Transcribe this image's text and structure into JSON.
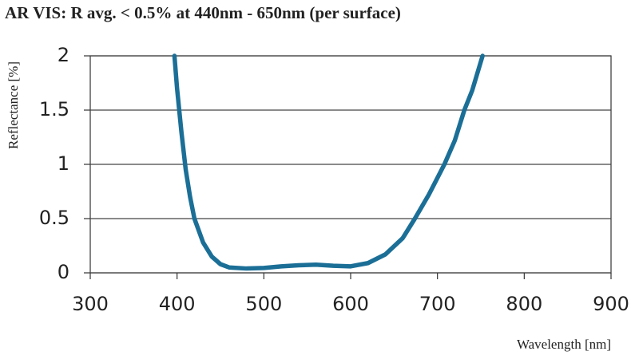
{
  "chart_data": {
    "type": "line",
    "title": "AR VIS: R avg. < 0.5% at 440nm - 650nm (per surface)",
    "x_label": "Wavelength [nm]",
    "y_label": "Reflectance [%]",
    "x": [
      397,
      400,
      405,
      410,
      415,
      420,
      430,
      440,
      450,
      460,
      480,
      500,
      520,
      540,
      560,
      580,
      600,
      620,
      640,
      660,
      674,
      690,
      708,
      720,
      731,
      740,
      752
    ],
    "series": [
      {
        "color": "#1b6f97",
        "values": [
          2.0,
          1.7,
          1.3,
          0.95,
          0.7,
          0.5,
          0.28,
          0.15,
          0.08,
          0.05,
          0.04,
          0.045,
          0.06,
          0.07,
          0.075,
          0.065,
          0.06,
          0.09,
          0.17,
          0.32,
          0.5,
          0.72,
          1.0,
          1.22,
          1.5,
          1.68,
          2.0
        ]
      }
    ],
    "xlim": [
      300,
      900
    ],
    "xticks": [
      300,
      400,
      500,
      600,
      700,
      800,
      900
    ],
    "ylim": [
      0,
      2
    ],
    "yticks": [
      0,
      0.5,
      1,
      1.5,
      2
    ],
    "grid": true
  }
}
